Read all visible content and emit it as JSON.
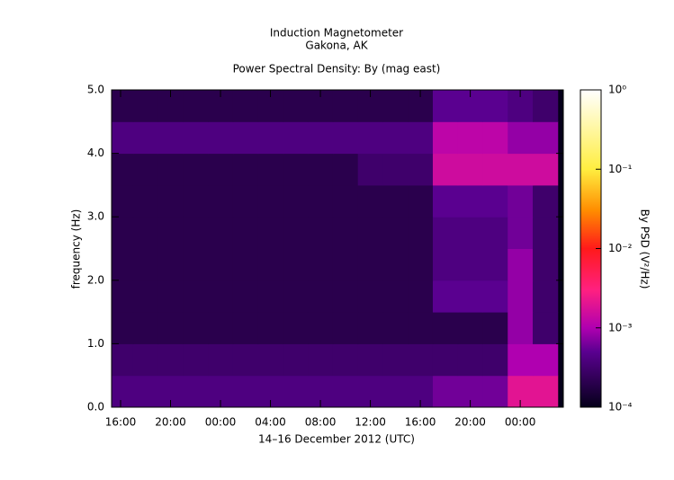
{
  "chart_data": {
    "type": "heatmap",
    "title": "Induction Magnetometer",
    "subtitle": "Gakona, AK",
    "plot_title": "Power Spectral Density: By (mag east)",
    "xlabel": "14–16 December 2012 (UTC)",
    "ylabel": "frequency (Hz)",
    "colorbar_label": "By PSD (V²/Hz)",
    "xlim": [
      15.28,
      51.45
    ],
    "xticks": [
      {
        "value": 16,
        "label": "16:00"
      },
      {
        "value": 20,
        "label": "20:00"
      },
      {
        "value": 24,
        "label": "00:00"
      },
      {
        "value": 28,
        "label": "04:00"
      },
      {
        "value": 32,
        "label": "08:00"
      },
      {
        "value": 36,
        "label": "12:00"
      },
      {
        "value": 40,
        "label": "16:00"
      },
      {
        "value": 44,
        "label": "20:00"
      },
      {
        "value": 48,
        "label": "00:00"
      }
    ],
    "ylim": [
      0,
      5
    ],
    "yticks": [
      {
        "value": 0,
        "label": "0.0"
      },
      {
        "value": 1,
        "label": "1.0"
      },
      {
        "value": 2,
        "label": "2.0"
      },
      {
        "value": 3,
        "label": "3.0"
      },
      {
        "value": 4,
        "label": "4.0"
      },
      {
        "value": 5,
        "label": "5.0"
      }
    ],
    "zlim": [
      0.0001,
      1
    ],
    "zscale": "log",
    "zticks": [
      {
        "value": 0.0001,
        "label": "10⁻⁴"
      },
      {
        "value": 0.001,
        "label": "10⁻³"
      },
      {
        "value": 0.01,
        "label": "10⁻²"
      },
      {
        "value": 0.1,
        "label": "10⁻¹"
      },
      {
        "value": 1,
        "label": "10⁰"
      }
    ],
    "colorscale": [
      {
        "value": 0.0001,
        "color": "#05001a"
      },
      {
        "value": 0.0005,
        "color": "#5a0090"
      },
      {
        "value": 0.001,
        "color": "#b000b0"
      },
      {
        "value": 0.003,
        "color": "#ff2080"
      },
      {
        "value": 0.01,
        "color": "#ff1a1a"
      },
      {
        "value": 0.03,
        "color": "#ff8c00"
      },
      {
        "value": 0.1,
        "color": "#ffee40"
      },
      {
        "value": 1,
        "color": "#ffffff"
      }
    ],
    "x": [
      16,
      18,
      20,
      22,
      24,
      26,
      28,
      30,
      32,
      34,
      36,
      38,
      40,
      42,
      44,
      46,
      48,
      50
    ],
    "y": [
      0.25,
      0.75,
      1.25,
      1.75,
      2.25,
      2.75,
      3.25,
      3.75,
      4.25,
      4.75
    ],
    "values": [
      [
        0.0004,
        0.0004,
        0.0004,
        0.0004,
        0.0004,
        0.0004,
        0.0004,
        0.0004,
        0.0004,
        0.0004,
        0.0004,
        0.0004,
        0.0004,
        0.0006,
        0.0006,
        0.0006,
        0.002,
        0.002
      ],
      [
        0.0003,
        0.0003,
        0.0003,
        0.0003,
        0.0003,
        0.0003,
        0.0003,
        0.0003,
        0.0003,
        0.0003,
        0.0003,
        0.0003,
        0.0003,
        0.0003,
        0.0003,
        0.0003,
        0.001,
        0.001
      ],
      [
        0.0002,
        0.0002,
        0.0002,
        0.0002,
        0.0002,
        0.0002,
        0.0002,
        0.0002,
        0.0002,
        0.0002,
        0.0002,
        0.0002,
        0.0002,
        0.0002,
        0.0002,
        0.0002,
        0.0008,
        0.0003
      ],
      [
        0.0002,
        0.0002,
        0.0002,
        0.0002,
        0.0002,
        0.0002,
        0.0002,
        0.0002,
        0.0002,
        0.0002,
        0.0002,
        0.0002,
        0.0002,
        0.0005,
        0.0005,
        0.0005,
        0.0008,
        0.0003
      ],
      [
        0.0002,
        0.0002,
        0.0002,
        0.0002,
        0.0002,
        0.0002,
        0.0002,
        0.0002,
        0.0002,
        0.0002,
        0.0002,
        0.0002,
        0.0002,
        0.0004,
        0.0004,
        0.0004,
        0.0008,
        0.0003
      ],
      [
        0.0002,
        0.0002,
        0.0002,
        0.0002,
        0.0002,
        0.0002,
        0.0002,
        0.0002,
        0.0002,
        0.0002,
        0.0002,
        0.0002,
        0.0002,
        0.0004,
        0.0004,
        0.0004,
        0.0006,
        0.0003
      ],
      [
        0.0002,
        0.0002,
        0.0002,
        0.0002,
        0.0002,
        0.0002,
        0.0002,
        0.0002,
        0.0002,
        0.0002,
        0.0002,
        0.0002,
        0.0002,
        0.0005,
        0.0005,
        0.0005,
        0.0006,
        0.0003
      ],
      [
        0.0002,
        0.0002,
        0.0002,
        0.0002,
        0.0002,
        0.0002,
        0.0002,
        0.0002,
        0.0002,
        0.0002,
        0.0003,
        0.0003,
        0.0003,
        0.0015,
        0.0015,
        0.0015,
        0.0015,
        0.0015
      ],
      [
        0.0004,
        0.0004,
        0.0004,
        0.0004,
        0.0004,
        0.0004,
        0.0004,
        0.0004,
        0.0004,
        0.0004,
        0.0004,
        0.0004,
        0.0004,
        0.0012,
        0.0012,
        0.0012,
        0.0008,
        0.0008
      ],
      [
        0.0002,
        0.0002,
        0.0002,
        0.0002,
        0.0002,
        0.0002,
        0.0002,
        0.0002,
        0.0002,
        0.0002,
        0.0002,
        0.0002,
        0.0002,
        0.0005,
        0.0005,
        0.0005,
        0.0004,
        0.0003
      ]
    ]
  }
}
